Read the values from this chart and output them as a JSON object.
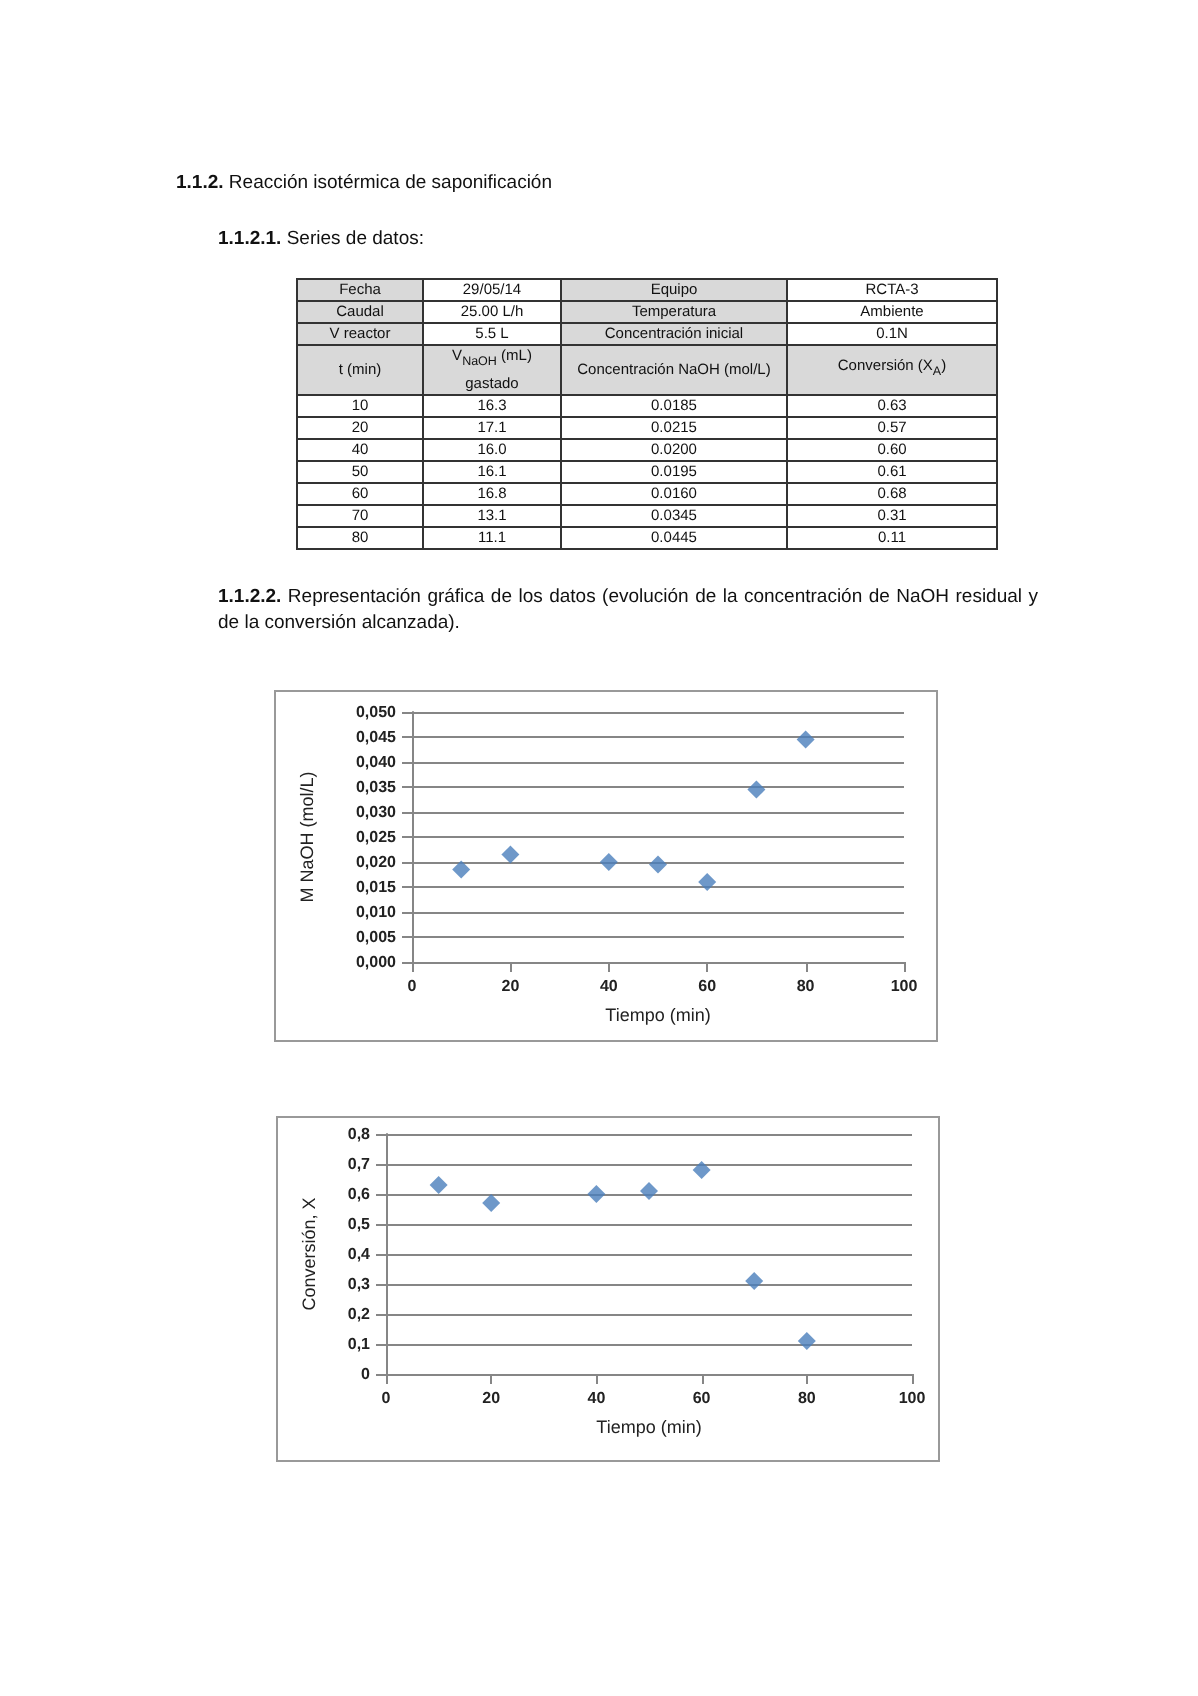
{
  "chart_data": [
    {
      "type": "other",
      "title": "1.1.2. Reacción isotérmica de saponificación",
      "subtitle": "1.1.2.1. Series de datos:",
      "annotations": [
        "Fecha",
        "29/05/14",
        "Equipo",
        "RCTA-3",
        "Caudal",
        "25.00 L/h",
        "Temperatura",
        "Ambiente",
        "V reactor",
        "5.5 L",
        "Concentración inicial",
        "0.1N",
        "t (min)",
        "V$_{NaOH}$ (mL) gastado",
        "Concentración NaOH (mol/L)",
        "Conversión (X$_{A}$)",
        "10",
        "16.3",
        "0.0185",
        "0.63",
        "20",
        "17.1",
        "0.0215",
        "0.57",
        "40",
        "16.0",
        "0.0200",
        "0.60",
        "50",
        "16.1",
        "0.0195",
        "0.61",
        "60",
        "16.8",
        "0.0160",
        "0.68",
        "70",
        "13.1",
        "0.0345",
        "0.31",
        "80",
        "11.1",
        "0.0445",
        "0.11"
      ]
    },
    {
      "type": "scatter",
      "title": "1.1.2.2. Representación gráfica de los datos (evolución de la concentración de NaOH residual y de la conversión alcanzada).",
      "xlabel": "Tiempo (min)",
      "ylabel": "M NaOH (mol/L)",
      "x": [
        10,
        20,
        40,
        50,
        60,
        70,
        80
      ],
      "series": [
        {
          "color": "#4a7ebb",
          "values": [
            0.0185,
            0.0215,
            0.02,
            0.0195,
            0.016,
            0.0345,
            0.0445
          ]
        }
      ],
      "xlim": [
        0,
        100
      ],
      "xticks": [
        0,
        20,
        40,
        60,
        80,
        100
      ],
      "ylim": [
        0,
        0.05
      ],
      "yticks": [
        {
          "value": 0,
          "label": "0,000"
        },
        {
          "value": 0.005,
          "label": "0,005"
        },
        {
          "value": 0.01,
          "label": "0,010"
        },
        {
          "value": 0.015,
          "label": "0,015"
        },
        {
          "value": 0.02,
          "label": "0,020"
        },
        {
          "value": 0.025,
          "label": "0,025"
        },
        {
          "value": 0.03,
          "label": "0,030"
        },
        {
          "value": 0.035,
          "label": "0,035"
        },
        {
          "value": 0.04,
          "label": "0,040"
        },
        {
          "value": 0.045,
          "label": "0,045"
        },
        {
          "value": 0.05,
          "label": "0,050"
        }
      ],
      "grid": "y",
      "marker": "diamond"
    },
    {
      "type": "scatter",
      "xlabel": "Tiempo (min)",
      "ylabel": "Conversión, X",
      "x": [
        10,
        20,
        40,
        50,
        60,
        70,
        80
      ],
      "series": [
        {
          "color": "#4a7ebb",
          "values": [
            0.63,
            0.57,
            0.6,
            0.61,
            0.68,
            0.31,
            0.11
          ]
        }
      ],
      "xlim": [
        0,
        100
      ],
      "xticks": [
        0,
        20,
        40,
        60,
        80,
        100
      ],
      "ylim": [
        0,
        0.8
      ],
      "yticks": [
        0,
        {
          "value": 0.1,
          "label": "0,1"
        },
        {
          "value": 0.2,
          "label": "0,2"
        },
        {
          "value": 0.3,
          "label": "0,3"
        },
        {
          "value": 0.4,
          "label": "0,4"
        },
        {
          "value": 0.5,
          "label": "0,5"
        },
        {
          "value": 0.6,
          "label": "0,6"
        },
        {
          "value": 0.7,
          "label": "0,7"
        },
        {
          "value": 0.8,
          "label": "0,8"
        }
      ],
      "grid": "y",
      "marker": "diamond"
    }
  ]
}
